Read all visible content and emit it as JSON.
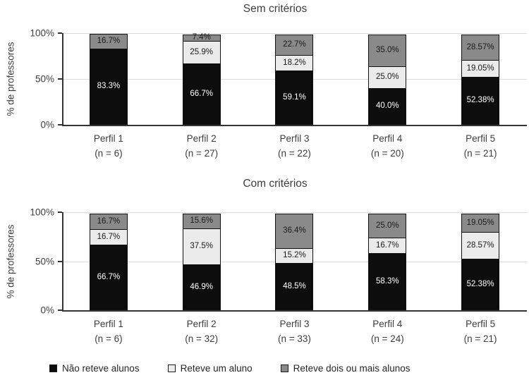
{
  "legend": {
    "items": [
      {
        "key": "nao-reteve-alunos",
        "label": "Não reteve alunos",
        "color": "#0d0d0d"
      },
      {
        "key": "reteve-um-aluno",
        "label": "Reteve um aluno",
        "color": "#ebebeb"
      },
      {
        "key": "reteve-dois-ou-mais-alunos",
        "label": "Reteve dois ou mais alunos",
        "color": "#8a8a8a"
      }
    ]
  },
  "chart_data": [
    {
      "type": "bar",
      "stacked": true,
      "title": "Sem critérios",
      "ylabel": "% de professores",
      "ylim": [
        0,
        100
      ],
      "grid": "horizontal",
      "legend_position": "bottom",
      "yticks": [
        {
          "label": "100%",
          "value": 100
        },
        {
          "label": "50%",
          "value": 50
        },
        {
          "label": "0%",
          "value": 0
        }
      ],
      "categories": [
        "Perfil 1",
        "Perfil 2",
        "Perfil 3",
        "Perfil 4",
        "Perfil 5"
      ],
      "category_sublabels": [
        "(n = 6)",
        "(n = 27)",
        "(n = 22)",
        "(n = 20)",
        "(n = 21)"
      ],
      "series": [
        {
          "key": "nao-reteve-alunos",
          "name": "Não reteve alunos",
          "color": "#0d0d0d",
          "label_color": "#ffffff",
          "values": [
            83.3,
            66.7,
            59.1,
            40.0,
            52.38
          ],
          "labels": [
            "83.3%",
            "66.7%",
            "59.1%",
            "40.0%",
            "52.38%"
          ]
        },
        {
          "key": "reteve-um-aluno",
          "name": "Reteve um aluno",
          "color": "#ebebeb",
          "label_color": "#1a1a1a",
          "values": [
            0,
            25.9,
            18.2,
            25.0,
            19.05
          ],
          "labels": [
            "",
            "25.9%",
            "18.2%",
            "25.0%",
            "19.05%"
          ]
        },
        {
          "key": "reteve-dois-ou-mais-alunos",
          "name": "Reteve dois ou mais alunos",
          "color": "#8a8a8a",
          "label_color": "#1a1a1a",
          "values": [
            16.7,
            7.4,
            22.7,
            35.0,
            28.57
          ],
          "labels": [
            "16.7%",
            "7.4%",
            "22.7%",
            "35.0%",
            "28.57%"
          ]
        }
      ]
    },
    {
      "type": "bar",
      "stacked": true,
      "title": "Com critérios",
      "ylabel": "% de professores",
      "ylim": [
        0,
        100
      ],
      "grid": "horizontal",
      "legend_position": "bottom",
      "yticks": [
        {
          "label": "100%",
          "value": 100
        },
        {
          "label": "50%",
          "value": 50
        },
        {
          "label": "0%",
          "value": 0
        }
      ],
      "categories": [
        "Perfil 1",
        "Perfil 2",
        "Perfil 3",
        "Perfil 4",
        "Perfil 5"
      ],
      "category_sublabels": [
        "(n = 6)",
        "(n = 32)",
        "(n = 33)",
        "(n = 24)",
        "(n = 21)"
      ],
      "series": [
        {
          "key": "nao-reteve-alunos",
          "name": "Não reteve alunos",
          "color": "#0d0d0d",
          "label_color": "#ffffff",
          "values": [
            66.7,
            46.9,
            48.5,
            58.3,
            52.38
          ],
          "labels": [
            "66.7%",
            "46.9%",
            "48.5%",
            "58.3%",
            "52.38%"
          ]
        },
        {
          "key": "reteve-um-aluno",
          "name": "Reteve um aluno",
          "color": "#ebebeb",
          "label_color": "#1a1a1a",
          "values": [
            16.7,
            37.5,
            15.2,
            16.7,
            28.57
          ],
          "labels": [
            "16.7%",
            "37.5%",
            "15.2%",
            "16.7%",
            "28.57%"
          ]
        },
        {
          "key": "reteve-dois-ou-mais-alunos",
          "name": "Reteve dois ou mais alunos",
          "color": "#8a8a8a",
          "label_color": "#1a1a1a",
          "values": [
            16.7,
            15.6,
            36.4,
            25.0,
            19.05
          ],
          "labels": [
            "16.7%",
            "15.6%",
            "36.4%",
            "25.0%",
            "19.05%"
          ]
        }
      ]
    }
  ]
}
